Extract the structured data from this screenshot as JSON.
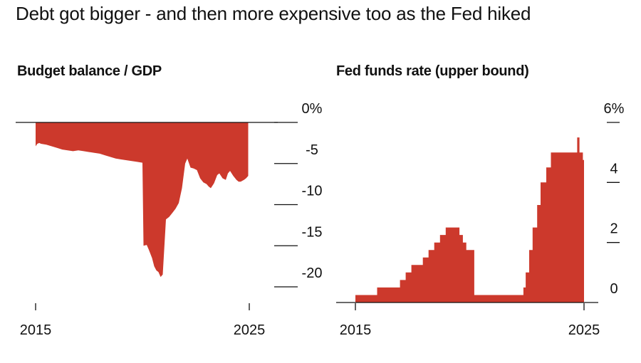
{
  "headline": "Debt got bigger - and then more expensive too as the Fed hiked",
  "colors": {
    "fill": "#cc392c",
    "axis": "#111111",
    "background": "#ffffff"
  },
  "chart_data": [
    {
      "type": "area",
      "title": "Budget balance / GDP",
      "xlabel": "",
      "ylabel": "",
      "xlim": [
        2015,
        2025
      ],
      "ylim": [
        -20,
        0
      ],
      "x_ticks": [
        "2015",
        "2025"
      ],
      "y_ticks": [
        {
          "value": 0,
          "label": "0%"
        },
        {
          "value": -5,
          "label": "-5"
        },
        {
          "value": -10,
          "label": "-10"
        },
        {
          "value": -15,
          "label": "-15"
        },
        {
          "value": -20,
          "label": "-20"
        }
      ],
      "series": [
        {
          "name": "Budget balance / GDP",
          "x": [
            2015.0,
            2015.08,
            2015.17,
            2015.25,
            2015.5,
            2015.75,
            2016.0,
            2016.25,
            2016.5,
            2016.75,
            2017.0,
            2017.25,
            2017.5,
            2017.75,
            2018.0,
            2018.25,
            2018.5,
            2018.75,
            2019.0,
            2019.25,
            2019.5,
            2019.75,
            2020.0,
            2020.05,
            2020.2,
            2020.3,
            2020.45,
            2020.55,
            2020.65,
            2020.75,
            2020.85,
            2020.95,
            2021.1,
            2021.25,
            2021.4,
            2021.55,
            2021.7,
            2021.85,
            2022.0,
            2022.1,
            2022.25,
            2022.4,
            2022.55,
            2022.7,
            2022.85,
            2023.0,
            2023.1,
            2023.2,
            2023.35,
            2023.5,
            2023.6,
            2023.75,
            2023.9,
            2024.0,
            2024.1,
            2024.25,
            2024.4,
            2024.5,
            2024.6,
            2024.75,
            2024.85,
            2024.95
          ],
          "values": [
            -2.9,
            -2.6,
            -2.5,
            -2.6,
            -2.7,
            -2.9,
            -3.1,
            -3.3,
            -3.4,
            -3.5,
            -3.4,
            -3.5,
            -3.6,
            -3.7,
            -3.8,
            -4.0,
            -4.2,
            -4.4,
            -4.5,
            -4.6,
            -4.7,
            -4.8,
            -4.9,
            -15.0,
            -14.9,
            -15.5,
            -16.5,
            -17.5,
            -18.0,
            -18.2,
            -18.8,
            -18.5,
            -11.8,
            -11.5,
            -11.0,
            -10.5,
            -9.8,
            -8.0,
            -5.0,
            -4.4,
            -5.5,
            -5.6,
            -5.8,
            -6.8,
            -7.3,
            -7.5,
            -7.8,
            -8.0,
            -7.4,
            -6.4,
            -6.2,
            -6.8,
            -7.0,
            -6.2,
            -5.9,
            -6.5,
            -7.0,
            -7.2,
            -7.2,
            -7.0,
            -6.8,
            -6.5
          ]
        }
      ]
    },
    {
      "type": "area",
      "title": "Fed funds rate (upper bound)",
      "xlabel": "",
      "ylabel": "",
      "xlim": [
        2015,
        2025
      ],
      "ylim": [
        0,
        6
      ],
      "x_ticks": [
        "2015",
        "2025"
      ],
      "y_ticks": [
        {
          "value": 6,
          "label": "6%"
        },
        {
          "value": 4,
          "label": "4"
        },
        {
          "value": 2,
          "label": "2"
        },
        {
          "value": 0,
          "label": "0"
        }
      ],
      "series": [
        {
          "name": "Fed funds rate (upper bound)",
          "x": [
            2015.0,
            2015.95,
            2016.95,
            2017.2,
            2017.45,
            2017.95,
            2018.2,
            2018.45,
            2018.7,
            2018.95,
            2019.55,
            2019.7,
            2019.85,
            2020.2,
            2022.2,
            2022.35,
            2022.45,
            2022.6,
            2022.75,
            2022.95,
            2023.1,
            2023.35,
            2023.55,
            2024.7,
            2024.8,
            2024.95,
            2025.0
          ],
          "values": [
            0.25,
            0.5,
            0.75,
            1.0,
            1.25,
            1.5,
            1.75,
            2.0,
            2.25,
            2.5,
            2.25,
            2.0,
            1.75,
            0.25,
            0.25,
            0.5,
            1.0,
            1.75,
            2.5,
            3.25,
            4.0,
            4.5,
            5.0,
            5.5,
            5.0,
            4.75,
            4.5
          ]
        }
      ]
    }
  ]
}
